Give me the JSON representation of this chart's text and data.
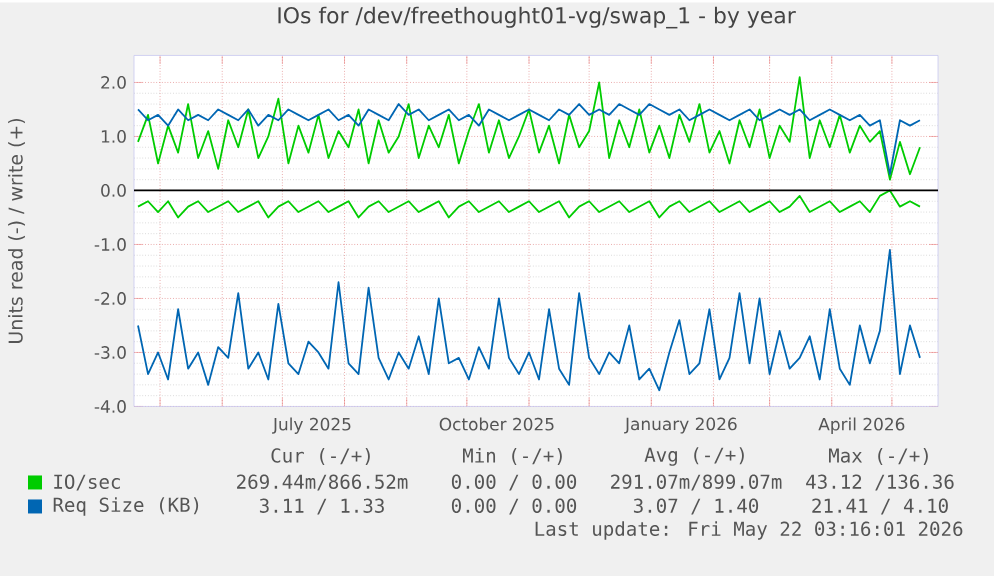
{
  "chart_data": {
    "type": "line",
    "title": "IOs for /dev/freethought01-vg/swap_1 - by year",
    "ylabel": "Units read (-) / write (+)",
    "x": [
      "2025-04-20",
      "2025-04-25",
      "2025-04-30",
      "2025-05-05",
      "2025-05-10",
      "2025-05-15",
      "2025-05-20",
      "2025-05-25",
      "2025-05-30",
      "2025-06-04",
      "2025-06-09",
      "2025-06-14",
      "2025-06-19",
      "2025-06-24",
      "2025-06-29",
      "2025-07-04",
      "2025-07-09",
      "2025-07-14",
      "2025-07-19",
      "2025-07-24",
      "2025-07-29",
      "2025-08-03",
      "2025-08-08",
      "2025-08-13",
      "2025-08-18",
      "2025-08-23",
      "2025-08-28",
      "2025-09-02",
      "2025-09-07",
      "2025-09-12",
      "2025-09-17",
      "2025-09-22",
      "2025-09-27",
      "2025-10-02",
      "2025-10-07",
      "2025-10-12",
      "2025-10-17",
      "2025-10-22",
      "2025-10-27",
      "2025-11-01",
      "2025-11-06",
      "2025-11-11",
      "2025-11-16",
      "2025-11-21",
      "2025-11-26",
      "2025-12-01",
      "2025-12-06",
      "2025-12-11",
      "2025-12-16",
      "2025-12-21",
      "2025-12-26",
      "2025-12-31",
      "2026-01-05",
      "2026-01-10",
      "2026-01-15",
      "2026-01-20",
      "2026-01-25",
      "2026-01-30",
      "2026-02-04",
      "2026-02-09",
      "2026-02-14",
      "2026-02-19",
      "2026-02-24",
      "2026-03-01",
      "2026-03-06",
      "2026-03-11",
      "2026-03-16",
      "2026-03-21",
      "2026-03-26",
      "2026-03-31",
      "2026-04-05",
      "2026-04-10",
      "2026-04-15",
      "2026-04-20",
      "2026-04-25",
      "2026-04-30",
      "2026-05-05",
      "2026-05-10",
      "2026-05-15"
    ],
    "series": [
      {
        "name": "IO/sec",
        "color": "#00cc00",
        "values": [
          0.9,
          1.4,
          0.5,
          1.2,
          0.7,
          1.6,
          0.6,
          1.1,
          0.4,
          1.3,
          0.8,
          1.5,
          0.6,
          1.0,
          1.7,
          0.5,
          1.2,
          0.7,
          1.4,
          0.6,
          1.1,
          0.8,
          1.5,
          0.5,
          1.3,
          0.7,
          1.0,
          1.6,
          0.6,
          1.2,
          0.8,
          1.4,
          0.5,
          1.1,
          1.6,
          0.7,
          1.3,
          0.6,
          1.0,
          1.5,
          0.7,
          1.2,
          0.5,
          1.4,
          0.8,
          1.1,
          2.0,
          0.6,
          1.3,
          0.8,
          1.5,
          0.7,
          1.2,
          0.6,
          1.4,
          0.9,
          1.6,
          0.7,
          1.1,
          0.5,
          1.3,
          0.8,
          1.5,
          0.6,
          1.2,
          0.9,
          2.1,
          0.6,
          1.3,
          0.8,
          1.4,
          0.7,
          1.2,
          0.9,
          1.1,
          0.2,
          0.9,
          0.3,
          0.8
        ]
      },
      {
        "color": "#00cc00",
        "values": [
          -0.3,
          -0.2,
          -0.4,
          -0.2,
          -0.5,
          -0.3,
          -0.2,
          -0.4,
          -0.3,
          -0.2,
          -0.4,
          -0.3,
          -0.2,
          -0.5,
          -0.3,
          -0.2,
          -0.4,
          -0.3,
          -0.2,
          -0.4,
          -0.3,
          -0.2,
          -0.5,
          -0.3,
          -0.2,
          -0.4,
          -0.3,
          -0.2,
          -0.4,
          -0.3,
          -0.2,
          -0.5,
          -0.3,
          -0.2,
          -0.4,
          -0.3,
          -0.2,
          -0.4,
          -0.3,
          -0.2,
          -0.4,
          -0.3,
          -0.2,
          -0.5,
          -0.3,
          -0.2,
          -0.4,
          -0.3,
          -0.2,
          -0.4,
          -0.3,
          -0.2,
          -0.5,
          -0.3,
          -0.2,
          -0.4,
          -0.3,
          -0.2,
          -0.4,
          -0.3,
          -0.2,
          -0.4,
          -0.3,
          -0.2,
          -0.4,
          -0.3,
          -0.1,
          -0.4,
          -0.3,
          -0.2,
          -0.4,
          -0.3,
          -0.2,
          -0.4,
          -0.1,
          0.0,
          -0.3,
          -0.2,
          -0.3
        ]
      },
      {
        "name": "Req Size (KB)",
        "color": "#0066b3",
        "values": [
          1.5,
          1.3,
          1.4,
          1.2,
          1.5,
          1.3,
          1.4,
          1.3,
          1.5,
          1.4,
          1.3,
          1.5,
          1.2,
          1.4,
          1.3,
          1.5,
          1.4,
          1.3,
          1.4,
          1.5,
          1.3,
          1.4,
          1.2,
          1.5,
          1.4,
          1.3,
          1.6,
          1.4,
          1.5,
          1.3,
          1.4,
          1.5,
          1.3,
          1.4,
          1.2,
          1.5,
          1.4,
          1.3,
          1.4,
          1.5,
          1.4,
          1.3,
          1.5,
          1.4,
          1.6,
          1.4,
          1.5,
          1.4,
          1.6,
          1.5,
          1.4,
          1.6,
          1.5,
          1.4,
          1.5,
          1.3,
          1.4,
          1.5,
          1.4,
          1.3,
          1.4,
          1.5,
          1.3,
          1.4,
          1.5,
          1.4,
          1.5,
          1.3,
          1.4,
          1.5,
          1.4,
          1.3,
          1.4,
          1.2,
          1.3,
          0.3,
          1.3,
          1.2,
          1.3
        ]
      },
      {
        "color": "#0066b3",
        "values": [
          -2.5,
          -3.4,
          -3.0,
          -3.5,
          -2.2,
          -3.3,
          -3.0,
          -3.6,
          -2.9,
          -3.1,
          -1.9,
          -3.3,
          -3.0,
          -3.5,
          -2.1,
          -3.2,
          -3.4,
          -2.8,
          -3.0,
          -3.3,
          -1.7,
          -3.2,
          -3.4,
          -1.8,
          -3.1,
          -3.5,
          -3.0,
          -3.3,
          -2.7,
          -3.4,
          -2.0,
          -3.2,
          -3.1,
          -3.5,
          -2.9,
          -3.3,
          -2.0,
          -3.1,
          -3.4,
          -3.0,
          -3.5,
          -2.2,
          -3.3,
          -3.6,
          -1.9,
          -3.1,
          -3.4,
          -3.0,
          -3.2,
          -2.5,
          -3.5,
          -3.3,
          -3.7,
          -3.0,
          -2.4,
          -3.4,
          -3.2,
          -2.2,
          -3.5,
          -3.1,
          -1.9,
          -3.2,
          -2.0,
          -3.4,
          -2.6,
          -3.3,
          -3.1,
          -2.7,
          -3.5,
          -2.2,
          -3.3,
          -3.6,
          -2.5,
          -3.2,
          -2.6,
          -1.1,
          -3.4,
          -2.5,
          -3.1
        ]
      }
    ],
    "xlim": [
      "2025-04-18",
      "2026-05-24"
    ],
    "xticks": [
      {
        "value": "2025-05-01",
        "label": null
      },
      {
        "value": "2025-06-01",
        "label": null
      },
      {
        "value": "2025-07-01",
        "label": null
      },
      {
        "value": "2025-08-01",
        "label": null
      },
      {
        "value": "2025-09-01",
        "label": null
      },
      {
        "value": "2025-10-01",
        "label": null
      },
      {
        "value": "2025-11-01",
        "label": null
      },
      {
        "value": "2025-12-01",
        "label": null
      },
      {
        "value": "2026-01-01",
        "label": null
      },
      {
        "value": "2026-02-01",
        "label": null
      },
      {
        "value": "2026-03-01",
        "label": null
      },
      {
        "value": "2026-04-01",
        "label": null
      },
      {
        "value": "2026-05-01",
        "label": null
      },
      {
        "value": "2025-07-16",
        "label": "July 2025"
      },
      {
        "value": "2025-10-16",
        "label": "October 2025"
      },
      {
        "value": "2026-01-16",
        "label": "January 2026"
      },
      {
        "value": "2026-04-16",
        "label": "April 2026"
      }
    ],
    "ylim": [
      -4,
      2.5
    ],
    "yticks": [
      {
        "value": -4,
        "label": "-4.0"
      },
      {
        "value": -3,
        "label": "-3.0"
      },
      {
        "value": -2,
        "label": "-2.0"
      },
      {
        "value": -1,
        "label": "-1.0"
      },
      {
        "value": 0,
        "label": "0.0"
      },
      {
        "value": 1,
        "label": "1.0"
      },
      {
        "value": 2,
        "label": "2.0"
      }
    ],
    "ref_lines": [
      {
        "axis": "y",
        "value": 0,
        "color": "#000000"
      }
    ],
    "grid": true,
    "legend": "bottom",
    "line_style": "solid",
    "annotations": [
      "Cur (-/+)",
      "Min (-/+)",
      "Avg (-/+)",
      "Max (-/+)",
      "269.44m/866.52m",
      "0.00 / 0.00",
      "291.07m/899.07m",
      "43.12 /136.36",
      "3.11 / 1.33",
      "0.00 / 0.00",
      "3.07 / 1.40",
      "21.41 / 4.10",
      "Last update: Fri May 22 03:16:01 2026"
    ]
  }
}
